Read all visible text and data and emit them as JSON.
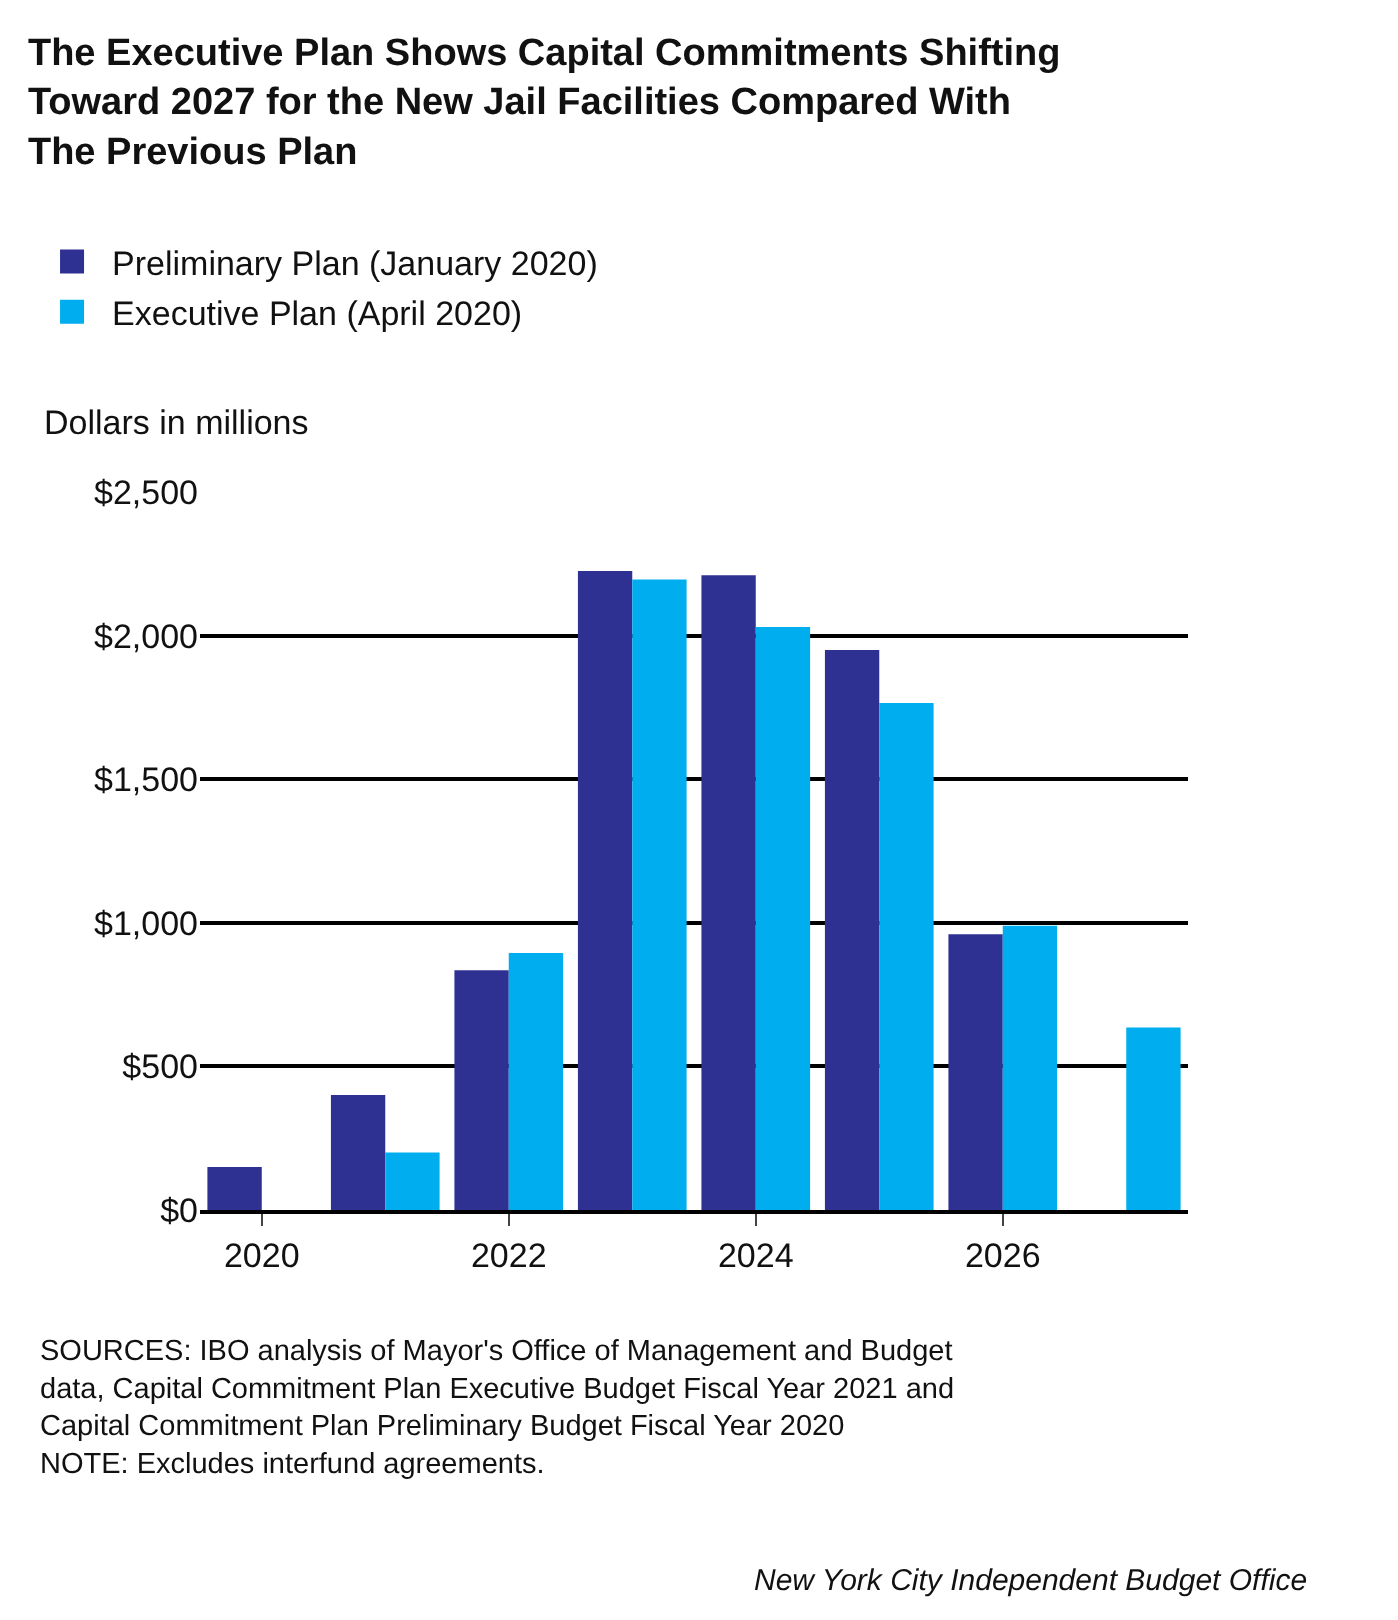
{
  "chart_data": {
    "type": "bar",
    "title": "The Executive Plan Shows Capital Commitments Shifting Toward 2027 for the New Jail Facilities Compared With The Previous Plan",
    "ylabel": "Dollars in millions",
    "categories": [
      "2020",
      null,
      "2022",
      null,
      "2024",
      null,
      "2026",
      null
    ],
    "series": [
      {
        "name": "Preliminary Plan (January 2020)",
        "color": "#2e3192",
        "values": [
          150,
          400,
          835,
          2225,
          2210,
          1950,
          960,
          null
        ]
      },
      {
        "name": "Executive Plan (April 2020)",
        "color": "#00aeef",
        "values": [
          null,
          200,
          895,
          2195,
          2030,
          1765,
          990,
          635
        ]
      }
    ],
    "ylim": [
      0,
      2500
    ],
    "yticks": [
      {
        "value": 0,
        "label": "$0"
      },
      {
        "value": 500,
        "label": "$500"
      },
      {
        "value": 1000,
        "label": "$1,000"
      },
      {
        "value": 1500,
        "label": "$1,500"
      },
      {
        "value": 2000,
        "label": "$2,000"
      },
      {
        "value": 2500,
        "label": "$2,500"
      }
    ],
    "grid": "y",
    "legend": "top left",
    "annotations": [
      "SOURCES: IBO analysis of Mayor's Office of Management and Budget data, Capital Commitment Plan Executive Budget Fiscal Year 2021 and Capital Commitment Plan Preliminary Budget Fiscal Year 2020",
      "NOTE: Excludes interfund agreements.",
      "New York City Independent Budget Office"
    ]
  }
}
